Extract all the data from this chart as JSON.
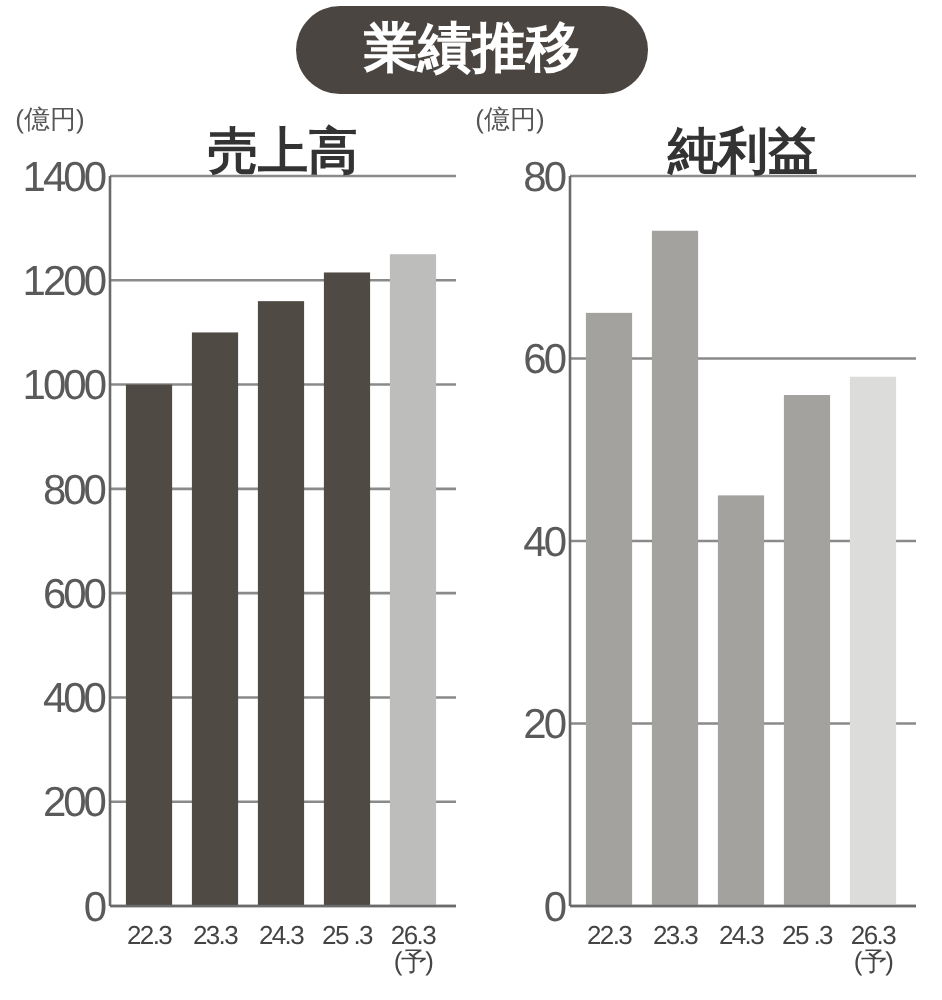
{
  "chart_data": [
    {
      "type": "bar",
      "title": "売上高",
      "ylabel": "(億円)",
      "annotations": [
        "業績推移"
      ],
      "categories": [
        "22.3",
        "23.3",
        "24.3",
        "25 .3",
        "26.3\n(予)"
      ],
      "values": [
        1000,
        1100,
        1160,
        1215,
        1250
      ],
      "colors": [
        "#4f4a44",
        "#4f4a44",
        "#4f4a44",
        "#4f4a44",
        "#bdbdbb"
      ],
      "ylim": [
        0,
        1400
      ],
      "yticks": [
        0,
        200,
        400,
        600,
        800,
        1000,
        1200,
        1400
      ],
      "grid": "y"
    },
    {
      "type": "bar",
      "title": "純利益",
      "ylabel": "(億円)",
      "categories": [
        "22.3",
        "23.3",
        "24.3",
        "25 .3",
        "26.3\n(予)"
      ],
      "values": [
        65,
        74,
        45,
        56,
        58
      ],
      "colors": [
        "#a3a29e",
        "#a3a29e",
        "#a3a29e",
        "#a3a29e",
        "#dcdcda"
      ],
      "ylim": [
        0,
        80
      ],
      "yticks": [
        0,
        20,
        40,
        60,
        80
      ],
      "grid": "y"
    }
  ]
}
